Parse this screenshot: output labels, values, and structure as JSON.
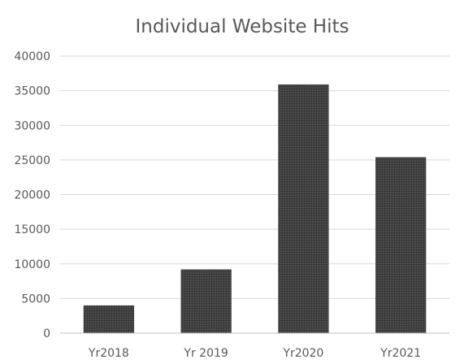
{
  "chart_data": {
    "type": "bar",
    "title": "Individual Website Hits",
    "categories": [
      "Yr2018",
      "Yr 2019",
      "Yr2020",
      "Yr2021"
    ],
    "values": [
      4000,
      9200,
      35900,
      25400
    ],
    "ylim": [
      0,
      40000
    ],
    "yticks": [
      "0",
      "5000",
      "10000",
      "15000",
      "20000",
      "25000",
      "30000",
      "35000",
      "40000"
    ],
    "grid": true,
    "legend": "none",
    "colors": {
      "bar": "#3f3f3f",
      "grid": "#d9d9d9",
      "text": "#595959",
      "axis": "#bfbfbf"
    }
  }
}
